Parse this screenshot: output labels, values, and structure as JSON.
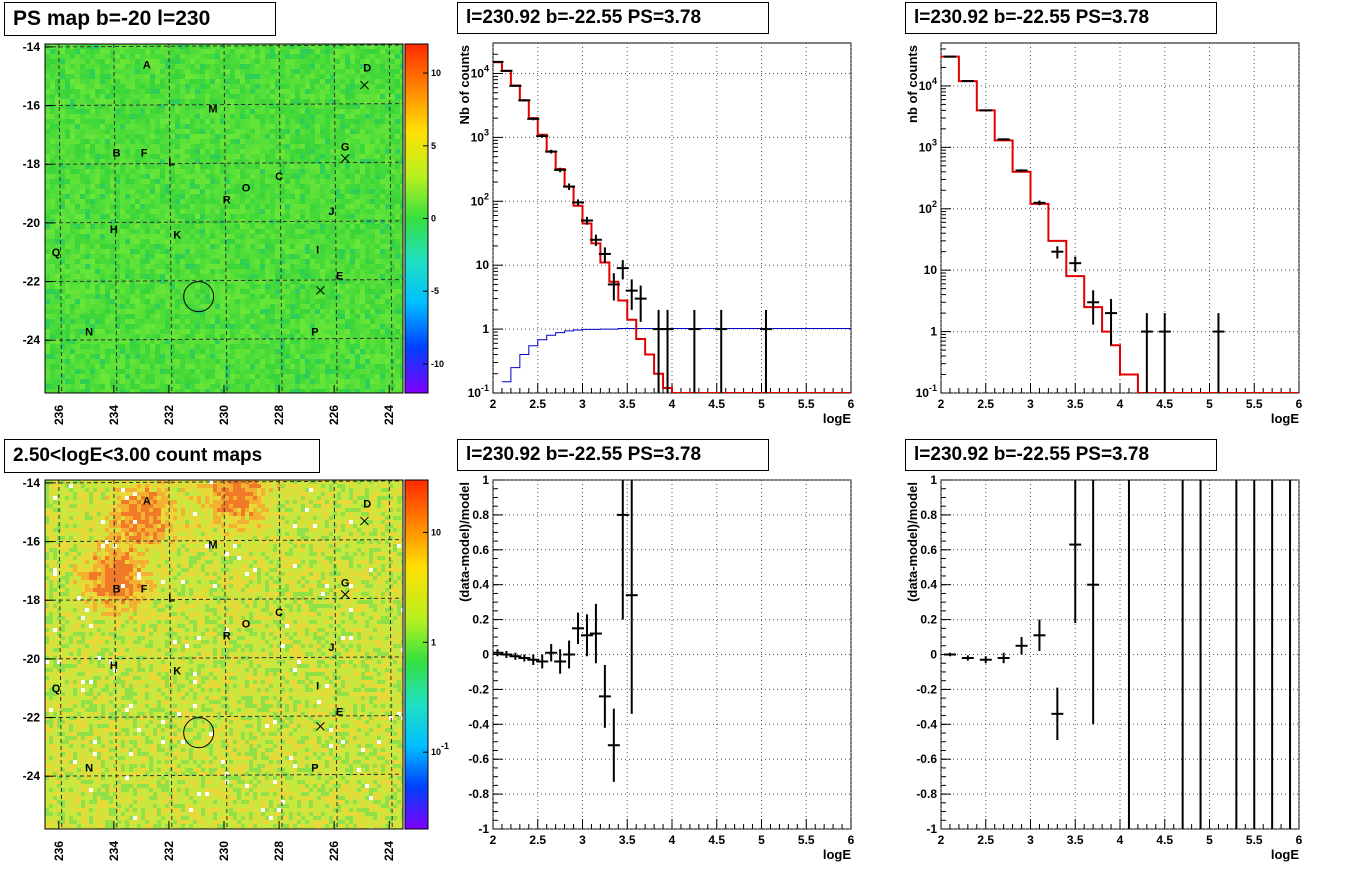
{
  "panels": {
    "map_ps": {
      "title": "PS map b=-20 l=230"
    },
    "map_counts": {
      "title": "2.50<logE<3.00 count maps"
    },
    "spec_left": {
      "title": "l=230.92 b=-22.55 PS=3.78"
    },
    "spec_right": {
      "title": "l=230.92 b=-22.55 PS=3.78"
    },
    "res_left": {
      "title": "l=230.92 b=-22.55 PS=3.78"
    },
    "res_right": {
      "title": "l=230.92 b=-22.55 PS=3.78"
    }
  },
  "colors": {
    "model_red": "#e00000",
    "acceptance_blue": "#0000cc",
    "data_black": "#000000",
    "grid": "#555555",
    "map_ps_bg": "#3fd83a",
    "map_counts_bg": "#d8e64a"
  },
  "chart_data": [
    {
      "id": "map_ps",
      "type": "heatmap",
      "title": "PS map b=-20 l=230",
      "xlim": [
        236.5,
        223.5
      ],
      "ylim": [
        -25.8,
        -13.9
      ],
      "xticks": [
        "236",
        "234",
        "232",
        "230",
        "228",
        "226",
        "224"
      ],
      "yticks": [
        "-14",
        "-16",
        "-18",
        "-20",
        "-22",
        "-24"
      ],
      "colorbar": {
        "scale": "linear",
        "range": [
          -12,
          12
        ],
        "ticks": [
          "10",
          "5",
          "0",
          "-5",
          "-10"
        ]
      },
      "source_labels": [
        {
          "label": "A",
          "l": 232.8,
          "b": -14.6
        },
        {
          "label": "D",
          "l": 224.8,
          "b": -14.7
        },
        {
          "label": "M",
          "l": 230.4,
          "b": -16.1
        },
        {
          "label": "B",
          "l": 233.9,
          "b": -17.6
        },
        {
          "label": "F",
          "l": 232.9,
          "b": -17.6
        },
        {
          "label": "L",
          "l": 231.9,
          "b": -17.9
        },
        {
          "label": "G",
          "l": 225.6,
          "b": -17.4
        },
        {
          "label": "C",
          "l": 228.0,
          "b": -18.4
        },
        {
          "label": "O",
          "l": 229.2,
          "b": -18.8
        },
        {
          "label": "R",
          "l": 229.9,
          "b": -19.2
        },
        {
          "label": "J",
          "l": 226.1,
          "b": -19.6
        },
        {
          "label": "H",
          "l": 234.0,
          "b": -20.2
        },
        {
          "label": "K",
          "l": 231.7,
          "b": -20.4
        },
        {
          "label": "I",
          "l": 226.6,
          "b": -20.9
        },
        {
          "label": "Q",
          "l": 236.1,
          "b": -21.0
        },
        {
          "label": "E",
          "l": 225.8,
          "b": -21.8
        },
        {
          "label": "N",
          "l": 234.9,
          "b": -23.7
        },
        {
          "label": "P",
          "l": 226.7,
          "b": -23.7
        }
      ],
      "crosses": [
        {
          "l": 224.9,
          "b": -15.3
        },
        {
          "l": 225.6,
          "b": -17.8
        },
        {
          "l": 226.5,
          "b": -22.3
        }
      ],
      "circle": {
        "l": 230.92,
        "b": -22.55
      }
    },
    {
      "id": "map_counts",
      "type": "heatmap",
      "title": "2.50<logE<3.00 count maps",
      "xlim": [
        236.5,
        223.5
      ],
      "ylim": [
        -25.8,
        -13.9
      ],
      "xticks": [
        "236",
        "234",
        "232",
        "230",
        "228",
        "226",
        "224"
      ],
      "yticks": [
        "-14",
        "-16",
        "-18",
        "-20",
        "-22",
        "-24"
      ],
      "colorbar": {
        "scale": "log",
        "range": [
          0.02,
          30
        ],
        "ticks": [
          "10",
          "1",
          "10^-1"
        ]
      },
      "hot_regions": [
        {
          "l": 233.0,
          "b": -15.0
        },
        {
          "l": 234.0,
          "b": -17.2
        },
        {
          "l": 229.6,
          "b": -14.3
        }
      ]
    },
    {
      "id": "spec_left",
      "type": "line",
      "title": "l=230.92 b=-22.55 PS=3.78",
      "xlabel": "logE",
      "ylabel": "Nb of counts",
      "xlim": [
        2,
        6
      ],
      "ylim": [
        0.1,
        30000
      ],
      "yscale": "log",
      "xticks": [
        "2",
        "2.5",
        "3",
        "3.5",
        "4",
        "4.5",
        "5",
        "5.5",
        "6"
      ],
      "yticks": [
        "10^-1",
        "1",
        "10",
        "10^2",
        "10^3",
        "10^4"
      ],
      "grid": true,
      "model_step": {
        "edges": [
          2.0,
          2.1,
          2.2,
          2.3,
          2.4,
          2.5,
          2.6,
          2.7,
          2.8,
          2.9,
          3.0,
          3.1,
          3.2,
          3.3,
          3.4,
          3.5,
          3.6,
          3.7,
          3.8,
          3.9,
          4.0,
          6.0
        ],
        "values": [
          15000,
          11000,
          6500,
          3800,
          2000,
          1100,
          600,
          320,
          170,
          85,
          45,
          22,
          11,
          5.5,
          2.8,
          1.4,
          0.7,
          0.4,
          0.2,
          0.12,
          0.1
        ]
      },
      "acceptance_step": {
        "edges": [
          2.1,
          2.2,
          2.3,
          2.4,
          2.5,
          2.6,
          2.7,
          2.8,
          2.9,
          3.0,
          3.2,
          3.4,
          6.0
        ],
        "values": [
          0.15,
          0.25,
          0.4,
          0.55,
          0.68,
          0.8,
          0.88,
          0.94,
          0.97,
          0.99,
          1.0,
          1.02
        ]
      },
      "data_points": [
        {
          "x": 2.05,
          "y": 15200,
          "yerr_lo": 14800,
          "yerr_hi": 15600
        },
        {
          "x": 2.15,
          "y": 11000,
          "yerr_lo": 10700,
          "yerr_hi": 11300
        },
        {
          "x": 2.25,
          "y": 6400,
          "yerr_lo": 6200,
          "yerr_hi": 6600
        },
        {
          "x": 2.35,
          "y": 3800,
          "yerr_lo": 3650,
          "yerr_hi": 3950
        },
        {
          "x": 2.45,
          "y": 1950,
          "yerr_lo": 1850,
          "yerr_hi": 2050
        },
        {
          "x": 2.55,
          "y": 1050,
          "yerr_lo": 990,
          "yerr_hi": 1110
        },
        {
          "x": 2.65,
          "y": 600,
          "yerr_lo": 560,
          "yerr_hi": 640
        },
        {
          "x": 2.75,
          "y": 310,
          "yerr_lo": 285,
          "yerr_hi": 335
        },
        {
          "x": 2.85,
          "y": 170,
          "yerr_lo": 150,
          "yerr_hi": 190
        },
        {
          "x": 2.95,
          "y": 96,
          "yerr_lo": 85,
          "yerr_hi": 107
        },
        {
          "x": 3.05,
          "y": 50,
          "yerr_lo": 43,
          "yerr_hi": 57
        },
        {
          "x": 3.15,
          "y": 25,
          "yerr_lo": 20,
          "yerr_hi": 30
        },
        {
          "x": 3.25,
          "y": 15,
          "yerr_lo": 11,
          "yerr_hi": 19
        },
        {
          "x": 3.35,
          "y": 5,
          "yerr_lo": 2.8,
          "yerr_hi": 7.5
        },
        {
          "x": 3.45,
          "y": 9,
          "yerr_lo": 6,
          "yerr_hi": 12
        },
        {
          "x": 3.55,
          "y": 4,
          "yerr_lo": 2,
          "yerr_hi": 6
        },
        {
          "x": 3.65,
          "y": 3,
          "yerr_lo": 1.3,
          "yerr_hi": 4.8
        },
        {
          "x": 3.85,
          "y": 1,
          "yerr_lo": 0.1,
          "yerr_hi": 2
        },
        {
          "x": 3.95,
          "y": 1,
          "yerr_lo": 0.1,
          "yerr_hi": 2
        },
        {
          "x": 4.25,
          "y": 1,
          "yerr_lo": 0.1,
          "yerr_hi": 2
        },
        {
          "x": 4.55,
          "y": 1,
          "yerr_lo": 0.1,
          "yerr_hi": 2
        },
        {
          "x": 5.05,
          "y": 1,
          "yerr_lo": 0.1,
          "yerr_hi": 2
        }
      ]
    },
    {
      "id": "spec_right",
      "type": "line",
      "title": "l=230.92 b=-22.55 PS=3.78",
      "xlabel": "logE",
      "ylabel": "nb of counts",
      "xlim": [
        2,
        6
      ],
      "ylim": [
        0.1,
        50000
      ],
      "yscale": "log",
      "xticks": [
        "2",
        "2.5",
        "3",
        "3.5",
        "4",
        "4.5",
        "5",
        "5.5",
        "6"
      ],
      "yticks": [
        "10^-1",
        "1",
        "10",
        "10^2",
        "10^3",
        "10^4"
      ],
      "grid": true,
      "model_step": {
        "edges": [
          2.0,
          2.2,
          2.4,
          2.6,
          2.8,
          3.0,
          3.2,
          3.4,
          3.6,
          3.8,
          3.9,
          4.0,
          4.2,
          6.0
        ],
        "values": [
          30000,
          12000,
          4000,
          1300,
          400,
          120,
          30,
          8,
          2.5,
          1.0,
          0.6,
          0.2,
          0.1
        ]
      },
      "data_points": [
        {
          "x": 2.1,
          "y": 30000,
          "yerr_lo": 29700,
          "yerr_hi": 30300
        },
        {
          "x": 2.3,
          "y": 12000,
          "yerr_lo": 11800,
          "yerr_hi": 12200
        },
        {
          "x": 2.5,
          "y": 4000,
          "yerr_lo": 3900,
          "yerr_hi": 4100
        },
        {
          "x": 2.7,
          "y": 1350,
          "yerr_lo": 1300,
          "yerr_hi": 1400
        },
        {
          "x": 2.9,
          "y": 420,
          "yerr_lo": 400,
          "yerr_hi": 440
        },
        {
          "x": 3.1,
          "y": 125,
          "yerr_lo": 114,
          "yerr_hi": 136
        },
        {
          "x": 3.3,
          "y": 20,
          "yerr_lo": 15.5,
          "yerr_hi": 24.5
        },
        {
          "x": 3.5,
          "y": 13,
          "yerr_lo": 9.4,
          "yerr_hi": 16.6
        },
        {
          "x": 3.7,
          "y": 3,
          "yerr_lo": 1.3,
          "yerr_hi": 4.7
        },
        {
          "x": 3.9,
          "y": 2,
          "yerr_lo": 0.6,
          "yerr_hi": 3.4
        },
        {
          "x": 4.3,
          "y": 1,
          "yerr_lo": 0.1,
          "yerr_hi": 2
        },
        {
          "x": 4.5,
          "y": 1,
          "yerr_lo": 0.1,
          "yerr_hi": 2
        },
        {
          "x": 5.1,
          "y": 1,
          "yerr_lo": 0.1,
          "yerr_hi": 2
        }
      ]
    },
    {
      "id": "res_left",
      "type": "scatter",
      "title": "l=230.92 b=-22.55 PS=3.78",
      "xlabel": "logE",
      "ylabel": "(data-model)/model",
      "xlim": [
        2,
        6
      ],
      "ylim": [
        -1,
        1
      ],
      "xticks": [
        "2",
        "2.5",
        "3",
        "3.5",
        "4",
        "4.5",
        "5",
        "5.5",
        "6"
      ],
      "yticks": [
        "1",
        "0.8",
        "0.6",
        "0.4",
        "0.2",
        "0",
        "-0.2",
        "-0.4",
        "-0.6",
        "-0.8",
        "-1"
      ],
      "grid": true,
      "data_points": [
        {
          "x": 2.05,
          "y": 0.01,
          "err": 0.02
        },
        {
          "x": 2.15,
          "y": 0.0,
          "err": 0.02
        },
        {
          "x": 2.25,
          "y": -0.01,
          "err": 0.02
        },
        {
          "x": 2.35,
          "y": -0.02,
          "err": 0.02
        },
        {
          "x": 2.45,
          "y": -0.03,
          "err": 0.03
        },
        {
          "x": 2.55,
          "y": -0.04,
          "err": 0.04
        },
        {
          "x": 2.65,
          "y": 0.01,
          "err": 0.05
        },
        {
          "x": 2.75,
          "y": -0.04,
          "err": 0.07
        },
        {
          "x": 2.85,
          "y": 0.0,
          "err": 0.08
        },
        {
          "x": 2.95,
          "y": 0.15,
          "err": 0.09
        },
        {
          "x": 3.05,
          "y": 0.11,
          "err": 0.12
        },
        {
          "x": 3.15,
          "y": 0.12,
          "err": 0.17
        },
        {
          "x": 3.25,
          "y": -0.24,
          "err": 0.18
        },
        {
          "x": 3.35,
          "y": -0.52,
          "err": 0.21
        },
        {
          "x": 3.45,
          "y": 0.8,
          "err": 0.6
        },
        {
          "x": 3.55,
          "y": 0.34,
          "err": 0.68
        }
      ]
    },
    {
      "id": "res_right",
      "type": "scatter",
      "title": "l=230.92 b=-22.55 PS=3.78",
      "xlabel": "logE",
      "ylabel": "(data-model)/model",
      "xlim": [
        2,
        6
      ],
      "ylim": [
        -1,
        1
      ],
      "xticks": [
        "2",
        "2.5",
        "3",
        "3.5",
        "4",
        "4.5",
        "5",
        "5.5",
        "6"
      ],
      "yticks": [
        "1",
        "0.8",
        "0.6",
        "0.4",
        "0.2",
        "0",
        "-0.2",
        "-0.4",
        "-0.6",
        "-0.8",
        "-1"
      ],
      "grid": true,
      "data_points": [
        {
          "x": 2.1,
          "y": 0.0,
          "err": 0.01
        },
        {
          "x": 2.3,
          "y": -0.02,
          "err": 0.015
        },
        {
          "x": 2.5,
          "y": -0.03,
          "err": 0.02
        },
        {
          "x": 2.7,
          "y": -0.02,
          "err": 0.03
        },
        {
          "x": 2.9,
          "y": 0.05,
          "err": 0.05
        },
        {
          "x": 3.1,
          "y": 0.11,
          "err": 0.09
        },
        {
          "x": 3.3,
          "y": -0.34,
          "err": 0.15
        },
        {
          "x": 3.5,
          "y": 0.63,
          "err": 0.45
        },
        {
          "x": 3.7,
          "y": 0.4,
          "err": 0.8
        }
      ],
      "vertical_bars_x": [
        4.1,
        4.7,
        4.9,
        5.3,
        5.5,
        5.7,
        5.9
      ]
    }
  ]
}
